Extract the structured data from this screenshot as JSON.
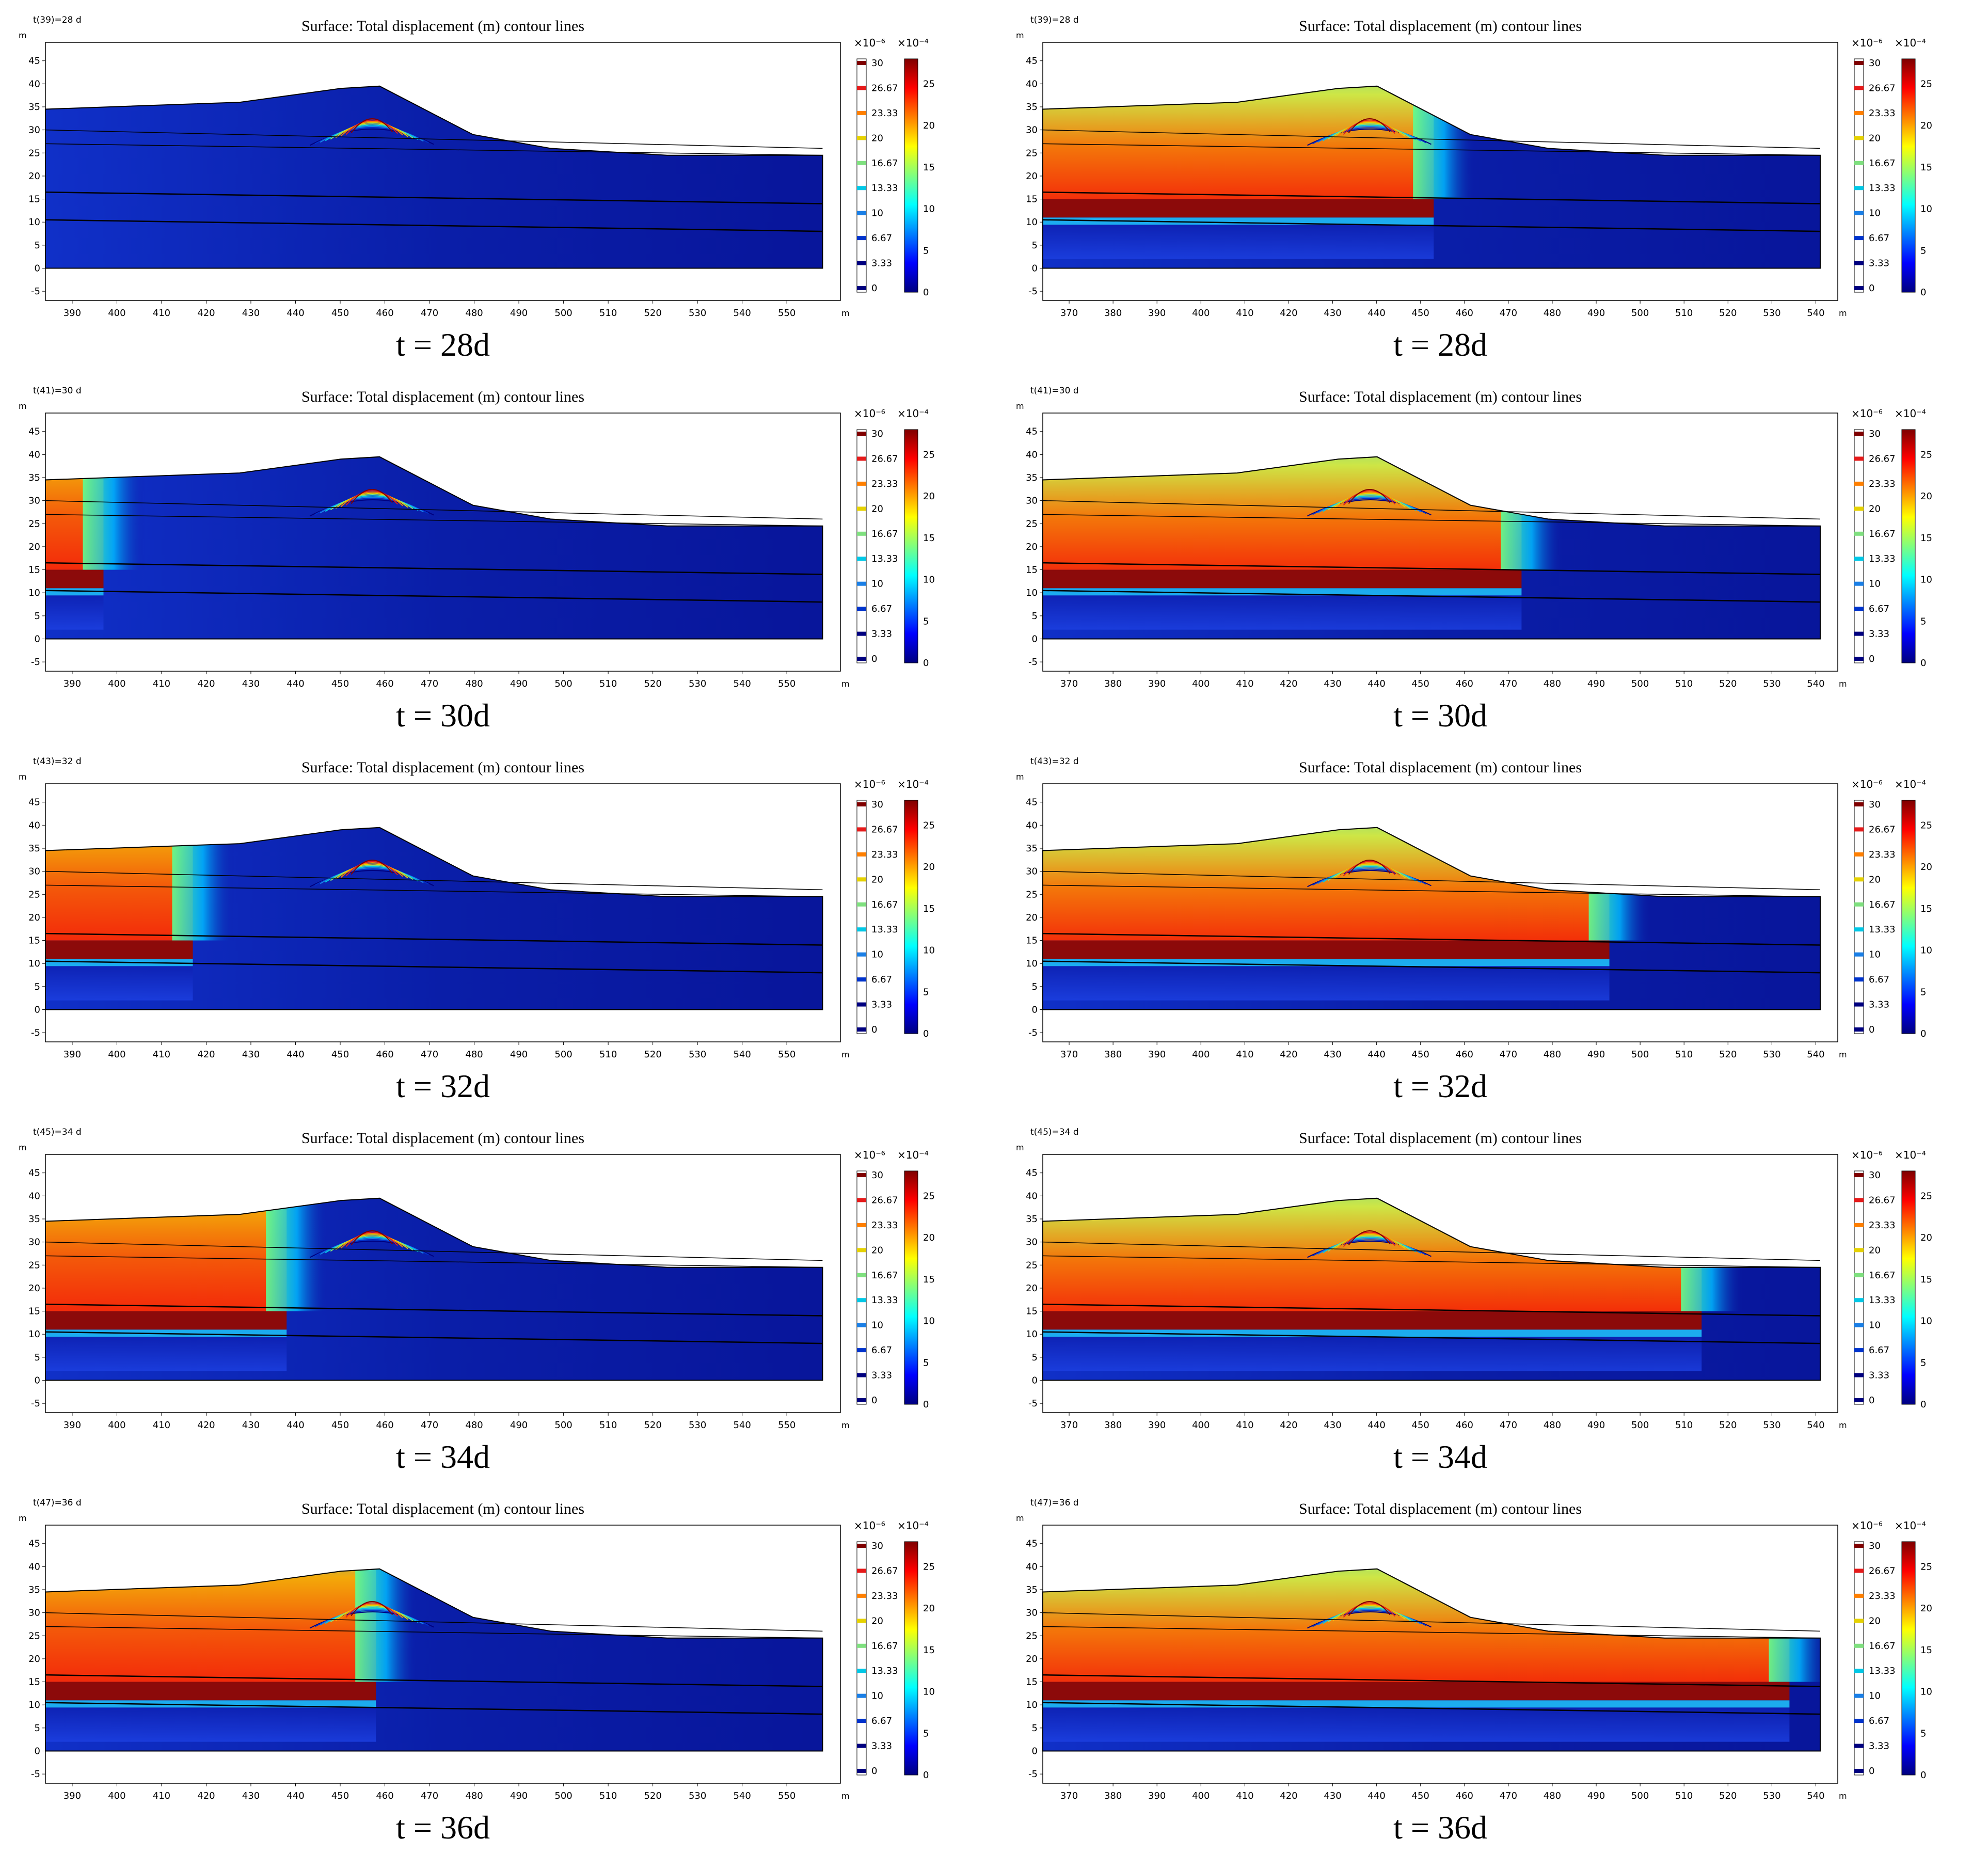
{
  "colors": {
    "jet": [
      "#00007f",
      "#0000ff",
      "#007fff",
      "#00ffff",
      "#7fff7f",
      "#ffff00",
      "#ff7f00",
      "#ff0000",
      "#7f0000"
    ],
    "seam": "#8c0a0a",
    "contour": [
      "#00007f",
      "#0033cc",
      "#1a7fe6",
      "#00c8e6",
      "#7fe07f",
      "#e6d200",
      "#ff7f00",
      "#e61a1a",
      "#7f0000"
    ]
  },
  "chart_data": {
    "type": "heatmap",
    "panel_title": "Surface: Total displacement (m)  contour lines",
    "x_unit": "m",
    "y_unit": "m",
    "y_ticks": [
      45,
      40,
      35,
      30,
      25,
      20,
      15,
      10,
      5,
      0,
      -5
    ],
    "left_x_ticks": [
      390,
      400,
      410,
      420,
      430,
      440,
      450,
      460,
      470,
      480,
      490,
      500,
      510,
      520,
      530,
      540,
      550
    ],
    "right_x_ticks": [
      370,
      380,
      390,
      400,
      410,
      420,
      430,
      440,
      450,
      460,
      470,
      480,
      490,
      500,
      510,
      520,
      530,
      540
    ],
    "left_xlim": [
      384,
      562
    ],
    "right_xlim": [
      364,
      545
    ],
    "ylim": [
      -7,
      49
    ],
    "contour_legend": {
      "exponent": "×10⁻⁶",
      "levels": [
        "30",
        "26.67",
        "23.33",
        "20",
        "16.67",
        "13.33",
        "10",
        "6.67",
        "3.33",
        "0"
      ]
    },
    "surface_legend": {
      "exponent": "×10⁻⁴",
      "ticks": [
        "25",
        "20",
        "15",
        "10",
        "5",
        "0"
      ],
      "range": [
        0,
        28
      ]
    },
    "panels": [
      {
        "column": "left",
        "row": 1,
        "timestamp": "t(39)=28 d",
        "caption": "t = 28d",
        "face_x": null
      },
      {
        "column": "right",
        "row": 1,
        "timestamp": "t(39)=28 d",
        "caption": "t = 28d",
        "face_x": 453
      },
      {
        "column": "left",
        "row": 2,
        "timestamp": "t(41)=30 d",
        "caption": "t = 30d",
        "face_x": 397
      },
      {
        "column": "right",
        "row": 2,
        "timestamp": "t(41)=30 d",
        "caption": "t = 30d",
        "face_x": 473
      },
      {
        "column": "left",
        "row": 3,
        "timestamp": "t(43)=32 d",
        "caption": "t = 32d",
        "face_x": 417
      },
      {
        "column": "right",
        "row": 3,
        "timestamp": "t(43)=32 d",
        "caption": "t = 32d",
        "face_x": 493
      },
      {
        "column": "left",
        "row": 4,
        "timestamp": "t(45)=34 d",
        "caption": "t = 34d",
        "face_x": 438
      },
      {
        "column": "right",
        "row": 4,
        "timestamp": "t(45)=34 d",
        "caption": "t = 34d",
        "face_x": 514
      },
      {
        "column": "left",
        "row": 5,
        "timestamp": "t(47)=36 d",
        "caption": "t = 36d",
        "face_x": 458
      },
      {
        "column": "right",
        "row": 5,
        "timestamp": "t(47)=36 d",
        "caption": "t = 36d",
        "face_x": 534
      }
    ],
    "terrain_profile": [
      [
        0,
        34.5
      ],
      [
        0.25,
        36
      ],
      [
        0.38,
        39
      ],
      [
        0.43,
        39.5
      ],
      [
        0.47,
        36
      ],
      [
        0.55,
        29
      ],
      [
        0.65,
        26
      ],
      [
        0.8,
        24.5
      ],
      [
        1.0,
        24.5
      ]
    ],
    "strata_y": [
      [
        30,
        26
      ],
      [
        27,
        24.5
      ],
      [
        16.5,
        14
      ],
      [
        10.5,
        8
      ]
    ],
    "seam_y": [
      11,
      15
    ]
  }
}
